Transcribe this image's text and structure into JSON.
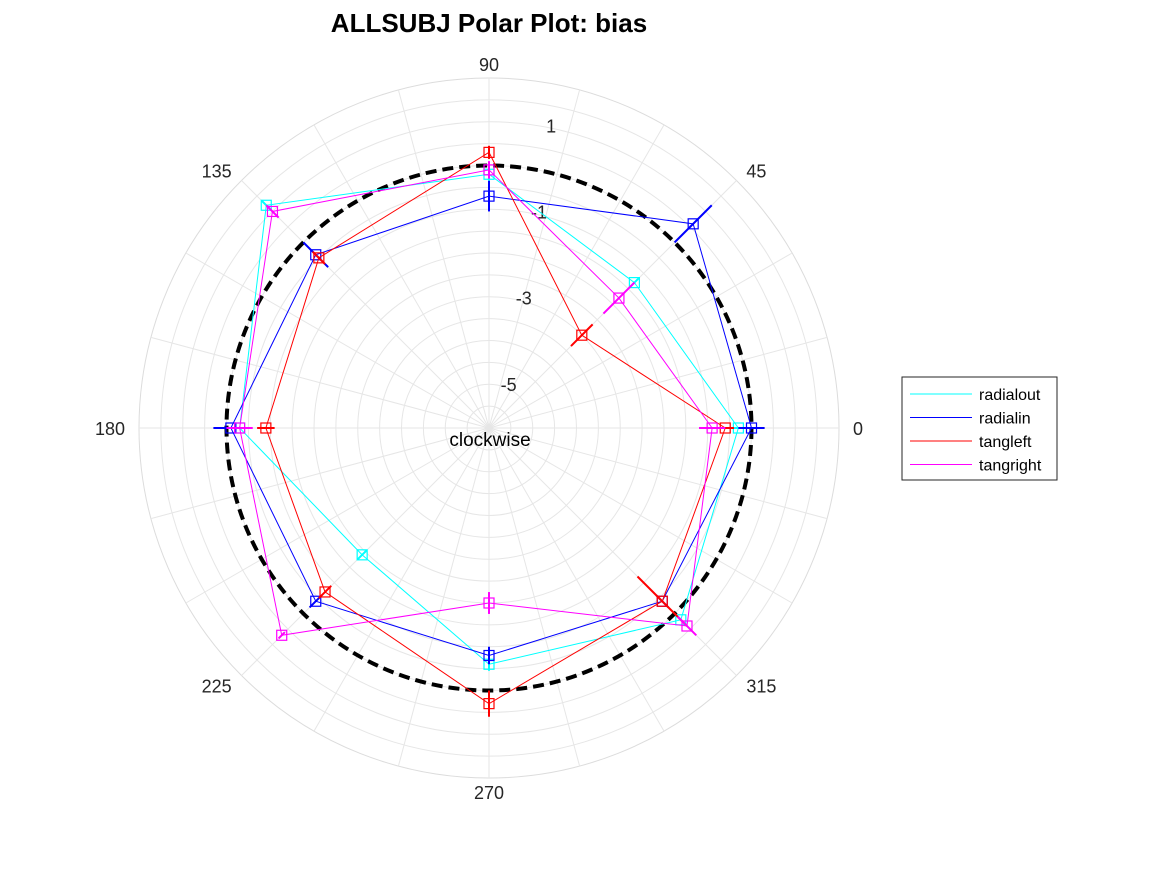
{
  "chart_data": {
    "type": "polar-line",
    "title": "ALLSUBJ Polar Plot: bias",
    "annotation": "clockwise",
    "theta_tick_labels": [
      "0",
      "45",
      "90",
      "135",
      "180",
      "225",
      "270",
      "315"
    ],
    "r_tick_labels": [
      "-5",
      "-3",
      "-1",
      "1"
    ],
    "r_lim": [
      -6,
      2
    ],
    "reference_circle": {
      "r": 0,
      "style": "dashed",
      "color": "#000000"
    },
    "angles_deg": [
      0,
      45,
      90,
      135,
      180,
      225,
      270,
      315
    ],
    "series": [
      {
        "name": "radialout",
        "color": "#00ffff",
        "values": [
          -0.3,
          -1.3,
          -0.2,
          1.2,
          -0.3,
          -1.9,
          -0.6,
          0.2
        ],
        "errors": [
          0.15,
          0.15,
          0.15,
          0.15,
          0.15,
          0.15,
          0.15,
          0.15
        ]
      },
      {
        "name": "radialin",
        "color": "#0000ff",
        "values": [
          0.0,
          0.6,
          -0.7,
          -0.4,
          -0.1,
          -0.4,
          -0.8,
          -0.4
        ],
        "errors": [
          0.3,
          0.6,
          0.35,
          0.4,
          0.4,
          0.2,
          0.2,
          0.2
        ]
      },
      {
        "name": "tangleft",
        "color": "#ff0000",
        "values": [
          -0.6,
          -3.0,
          0.3,
          -0.5,
          -0.9,
          -0.7,
          0.3,
          -0.4
        ],
        "errors": [
          0.2,
          0.35,
          0.15,
          0.2,
          0.2,
          0.2,
          0.3,
          0.8
        ]
      },
      {
        "name": "tangright",
        "color": "#ff00ff",
        "values": [
          -0.9,
          -1.8,
          -0.1,
          1.0,
          -0.3,
          0.7,
          -2.0,
          0.4
        ],
        "errors": [
          0.3,
          0.5,
          0.2,
          0.2,
          0.3,
          0.1,
          0.25,
          0.3
        ]
      }
    ],
    "legend_position": "right"
  }
}
